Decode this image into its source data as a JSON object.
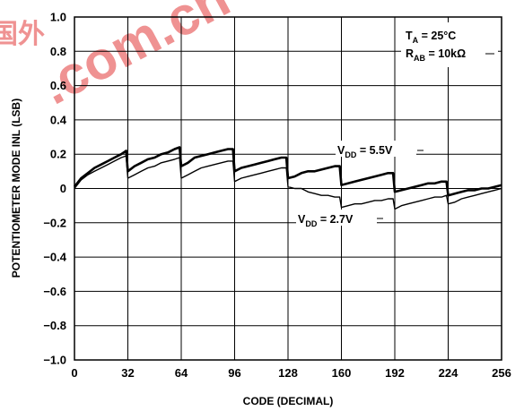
{
  "chart_data": {
    "type": "line",
    "title": "",
    "xlabel": "CODE (DECIMAL)",
    "ylabel": "POTENTIOMETER MODE INL (LSB)",
    "xlim": [
      0,
      256
    ],
    "ylim": [
      -1.0,
      1.0
    ],
    "xticks": [
      0,
      32,
      64,
      96,
      128,
      160,
      192,
      224,
      256
    ],
    "xtick_labels": [
      "0",
      "32",
      "64",
      "96",
      "128",
      "160",
      "192",
      "224",
      "256"
    ],
    "yticks": [
      1.0,
      0.8,
      0.6,
      0.4,
      0.2,
      0,
      -0.2,
      -0.4,
      -0.6,
      -0.8,
      -1.0
    ],
    "ytick_labels": [
      "1.0",
      "0.8",
      "0.6",
      "0.4",
      "0.2",
      "0",
      "−0.2",
      "−0.4",
      "−0.6",
      "−0.8",
      "−1.0"
    ],
    "grid": true,
    "annotations": {
      "ta": {
        "main": "T",
        "sub": "A",
        "rest": " = 25°C"
      },
      "rab": {
        "main": "R",
        "sub": "AB",
        "rest": " = 10kΩ"
      },
      "vdd55": {
        "main": "V",
        "sub": "DD",
        "rest": " = 5.5V"
      },
      "vdd27": {
        "main": "V",
        "sub": "DD",
        "rest": " = 2.7V"
      }
    },
    "series": [
      {
        "legend_ref": "vdd55",
        "x": [
          0,
          4,
          8,
          12,
          16,
          20,
          24,
          28,
          31,
          32,
          36,
          40,
          44,
          48,
          52,
          56,
          60,
          63,
          64,
          68,
          72,
          76,
          80,
          84,
          88,
          92,
          95,
          96,
          100,
          104,
          108,
          112,
          116,
          120,
          124,
          127,
          128,
          132,
          136,
          140,
          144,
          148,
          152,
          156,
          159,
          160,
          164,
          168,
          172,
          176,
          180,
          184,
          188,
          191,
          192,
          196,
          200,
          204,
          208,
          212,
          216,
          220,
          223,
          224,
          228,
          232,
          236,
          240,
          244,
          248,
          252,
          256
        ],
        "y": [
          0.01,
          0.06,
          0.09,
          0.12,
          0.14,
          0.16,
          0.18,
          0.2,
          0.22,
          0.1,
          0.13,
          0.15,
          0.17,
          0.18,
          0.2,
          0.21,
          0.23,
          0.24,
          0.13,
          0.15,
          0.18,
          0.19,
          0.2,
          0.21,
          0.22,
          0.23,
          0.23,
          0.1,
          0.12,
          0.13,
          0.14,
          0.15,
          0.16,
          0.17,
          0.18,
          0.18,
          0.06,
          0.07,
          0.09,
          0.1,
          0.1,
          0.11,
          0.12,
          0.13,
          0.13,
          0.02,
          0.03,
          0.04,
          0.05,
          0.06,
          0.07,
          0.08,
          0.09,
          0.09,
          -0.02,
          -0.01,
          0.0,
          0.01,
          0.02,
          0.03,
          0.03,
          0.04,
          0.04,
          -0.04,
          -0.03,
          -0.02,
          -0.01,
          -0.01,
          0.0,
          0.0,
          0.01,
          0.02
        ]
      },
      {
        "legend_ref": "vdd27",
        "x": [
          0,
          4,
          8,
          12,
          16,
          20,
          24,
          28,
          31,
          32,
          36,
          40,
          44,
          48,
          52,
          56,
          60,
          63,
          64,
          68,
          72,
          76,
          80,
          84,
          88,
          92,
          95,
          96,
          100,
          104,
          108,
          112,
          116,
          120,
          124,
          127,
          128,
          132,
          136,
          140,
          144,
          148,
          152,
          156,
          159,
          160,
          164,
          168,
          172,
          176,
          180,
          184,
          188,
          191,
          192,
          196,
          200,
          204,
          208,
          212,
          216,
          220,
          223,
          224,
          228,
          232,
          236,
          240,
          244,
          248,
          252,
          256
        ],
        "y": [
          0.0,
          0.05,
          0.08,
          0.1,
          0.12,
          0.14,
          0.16,
          0.18,
          0.19,
          0.06,
          0.08,
          0.1,
          0.12,
          0.13,
          0.15,
          0.16,
          0.17,
          0.18,
          0.06,
          0.08,
          0.1,
          0.12,
          0.13,
          0.14,
          0.15,
          0.16,
          0.16,
          0.04,
          0.06,
          0.07,
          0.08,
          0.09,
          0.1,
          0.11,
          0.12,
          0.12,
          0.01,
          0.0,
          0.0,
          -0.02,
          -0.03,
          -0.04,
          -0.04,
          -0.05,
          -0.05,
          -0.11,
          -0.1,
          -0.09,
          -0.09,
          -0.08,
          -0.07,
          -0.07,
          -0.06,
          -0.06,
          -0.12,
          -0.1,
          -0.09,
          -0.08,
          -0.07,
          -0.06,
          -0.05,
          -0.05,
          -0.04,
          -0.09,
          -0.08,
          -0.06,
          -0.05,
          -0.04,
          -0.03,
          -0.02,
          -0.01,
          0.0
        ]
      }
    ]
  },
  "watermark": {
    "text": ".com.cn",
    "glyphs": "国外",
    "color": "#e23a3a"
  }
}
